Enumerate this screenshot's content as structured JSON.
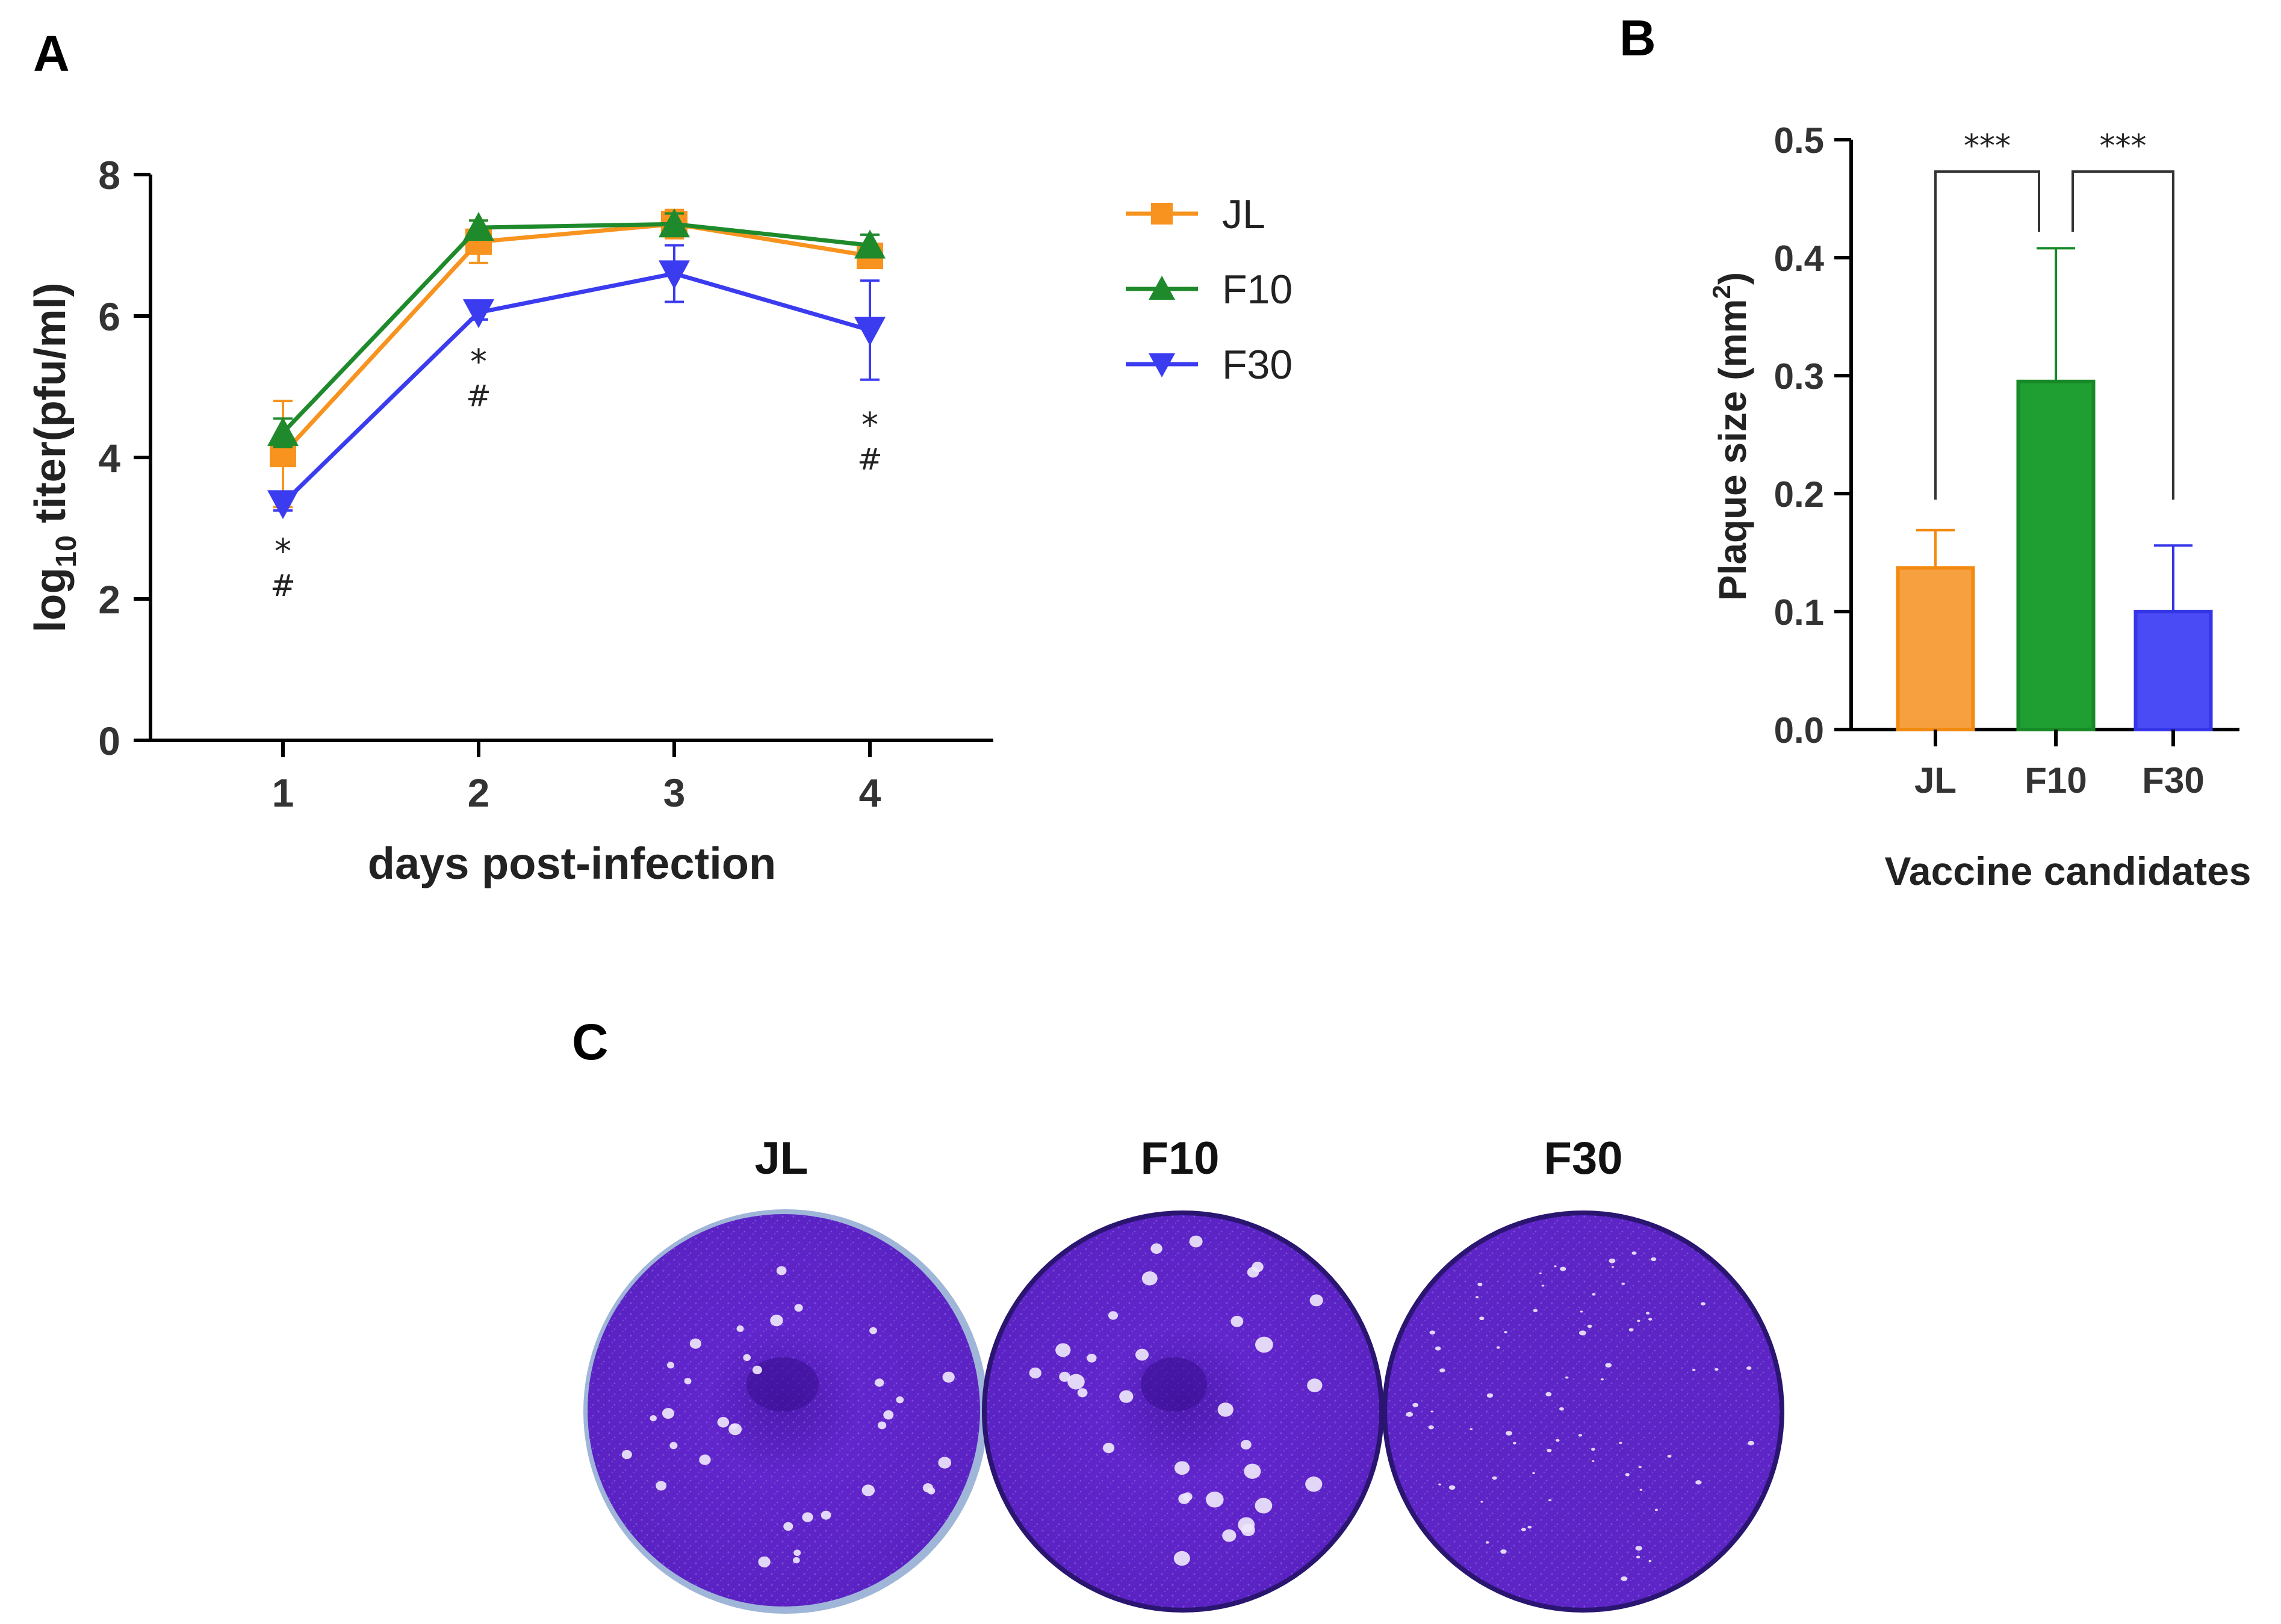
{
  "panels": {
    "a": "A",
    "b": "B",
    "c": "C"
  },
  "chart_data": [
    {
      "type": "line",
      "panel": "A",
      "xlabel": "days post-infection",
      "ylabel_main": "log",
      "ylabel_sub": "10",
      "ylabel_rest": " titer(pfu/ml)",
      "x": [
        1,
        2,
        3,
        4
      ],
      "xticks": [
        "1",
        "2",
        "3",
        "4"
      ],
      "ylim": [
        0,
        8
      ],
      "yticks": [
        "0",
        "2",
        "4",
        "6",
        "8"
      ],
      "series": [
        {
          "name": "JL",
          "color": "#f7931e",
          "marker": "square",
          "values": [
            4.05,
            7.05,
            7.3,
            6.85
          ],
          "errors": [
            0.75,
            0.3,
            0.2,
            0.12
          ]
        },
        {
          "name": "F10",
          "color": "#1f8a2c",
          "marker": "triangle-up",
          "values": [
            4.35,
            7.25,
            7.3,
            7.0
          ],
          "errors": [
            0.2,
            0.1,
            0.15,
            0.15
          ]
        },
        {
          "name": "F30",
          "color": "#3b3bf0",
          "marker": "triangle-down",
          "values": [
            3.35,
            6.05,
            6.6,
            5.8
          ],
          "errors": [
            0.1,
            0.1,
            0.4,
            0.7
          ]
        }
      ],
      "annotations": [
        {
          "x": 1,
          "line1": "*",
          "line2": "#"
        },
        {
          "x": 2,
          "line1": "*",
          "line2": "#"
        },
        {
          "x": 4,
          "line1": "*",
          "line2": "#"
        }
      ]
    },
    {
      "type": "bar",
      "panel": "B",
      "categories": [
        "JL",
        "F10",
        "F30"
      ],
      "values": [
        0.137,
        0.295,
        0.1
      ],
      "errors": [
        0.032,
        0.113,
        0.056
      ],
      "colors": [
        "#f7a040",
        "#1f9e32",
        "#4b4bf5"
      ],
      "edge_colors": [
        "#f28a10",
        "#178a27",
        "#3535e8"
      ],
      "xlabel": "Vaccine candidates",
      "ylabel_main": "Plaque size (mm",
      "ylabel_sup": "2",
      "ylabel_end": ")",
      "ylim": [
        0,
        0.5
      ],
      "yticks": [
        "0.0",
        "0.1",
        "0.2",
        "0.3",
        "0.4",
        "0.5"
      ],
      "significance": [
        {
          "from": "JL",
          "to": "F10",
          "label": "***"
        },
        {
          "from": "F10",
          "to": "F30",
          "label": "***"
        }
      ]
    }
  ],
  "panel_c": {
    "labels": [
      "JL",
      "F10",
      "F30"
    ],
    "dish_color": "#5b22c4"
  }
}
